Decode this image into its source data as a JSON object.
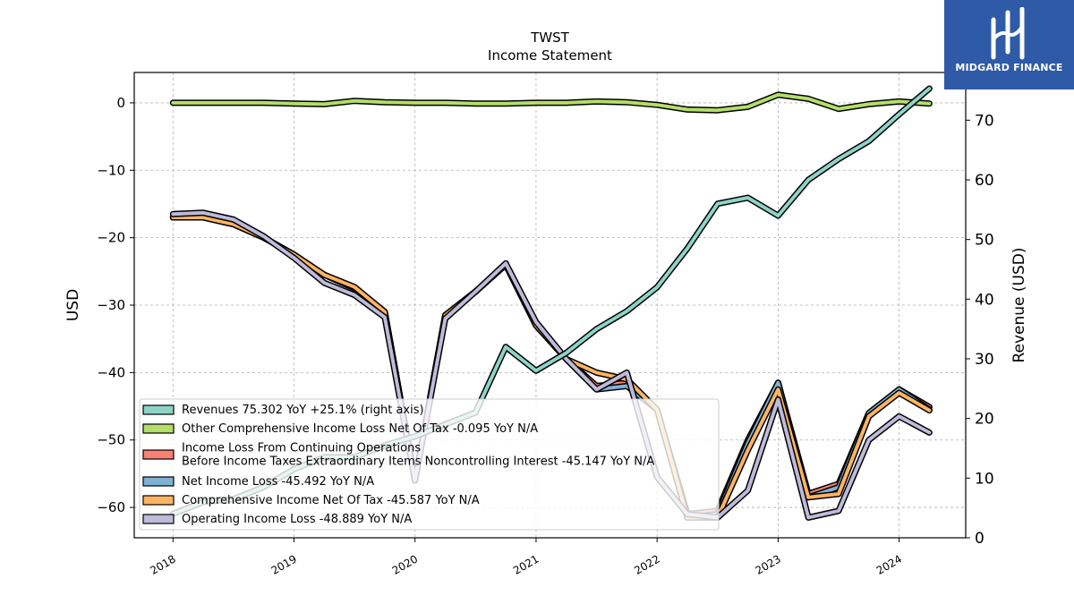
{
  "chart_data": {
    "type": "line",
    "title": "TWST",
    "subtitle": "Income Statement",
    "ylabel": "USD",
    "ylabel_right": "Revenue (USD)",
    "ylim": [
      -64.5,
      4.5
    ],
    "ylim_right": [
      0,
      78
    ],
    "yticks": [
      0,
      -10,
      -20,
      -30,
      -40,
      -50,
      -60
    ],
    "yticks_right": [
      0,
      10,
      20,
      30,
      40,
      50,
      60,
      70
    ],
    "xlim": [
      2017.68,
      2024.55
    ],
    "xticks": [
      2018,
      2019,
      2020,
      2021,
      2022,
      2023,
      2024
    ],
    "x": [
      2018.0,
      2018.25,
      2018.5,
      2018.75,
      2019.0,
      2019.25,
      2019.5,
      2019.75,
      2020.0,
      2020.25,
      2020.5,
      2020.75,
      2021.0,
      2021.25,
      2021.5,
      2021.75,
      2022.0,
      2022.25,
      2022.5,
      2022.75,
      2023.0,
      2023.25,
      2023.5,
      2023.75,
      2024.0,
      2024.25
    ],
    "grid": true,
    "legend_position": "lower-left",
    "series": [
      {
        "name": "Revenues",
        "legend": "Revenues  75.302 YoY +25.1% (right axis)",
        "color": "#8dd3c7",
        "axis": "right",
        "values": [
          4.0,
          6.0,
          6.5,
          8.5,
          11.5,
          13.5,
          13.5,
          15.5,
          17.0,
          19.0,
          21.0,
          32.0,
          28.0,
          31.0,
          35.0,
          38.0,
          42.0,
          48.5,
          56.0,
          57.0,
          54.0,
          60.0,
          63.5,
          66.5,
          71.0,
          75.3
        ]
      },
      {
        "name": "Other Comprehensive Income Loss Net Of Tax",
        "legend": "Other Comprehensive Income Loss Net Of Tax  -0.095 YoY N/A",
        "color": "#b3de69",
        "axis": "left",
        "values": [
          0.0,
          0.0,
          0.0,
          0.0,
          -0.1,
          -0.2,
          0.3,
          0.1,
          0.0,
          0.0,
          -0.1,
          -0.1,
          0.0,
          0.0,
          0.2,
          0.1,
          -0.3,
          -1.0,
          -1.1,
          -0.6,
          1.2,
          0.6,
          -0.9,
          -0.2,
          0.2,
          -0.1
        ]
      },
      {
        "name": "Income Loss From Continuing Operations Before Income Taxes Extraordinary Items Noncontrolling Interest",
        "legend": "Income Loss From Continuing Operations\nBefore Income Taxes Extraordinary Items Noncontrolling Interest  -45.147 YoY N/A",
        "color": "#fb8072",
        "axis": "left",
        "values": [
          -17.0,
          -17.0,
          -18.0,
          -20.0,
          -22.5,
          -25.5,
          -27.5,
          -31.0,
          -56.0,
          -31.5,
          -28.0,
          -24.0,
          -33.0,
          -38.0,
          -42.0,
          -41.5,
          -45.5,
          -61.0,
          -60.5,
          -50.0,
          -41.5,
          -58.0,
          -56.5,
          -46.0,
          -42.5,
          -45.1
        ]
      },
      {
        "name": "Net Income Loss",
        "legend": "Net Income Loss  -45.492 YoY N/A",
        "color": "#80b1d3",
        "axis": "left",
        "values": [
          -17.0,
          -17.0,
          -18.0,
          -20.0,
          -22.5,
          -25.5,
          -27.5,
          -31.0,
          -56.0,
          -31.5,
          -28.0,
          -24.0,
          -33.0,
          -38.0,
          -42.5,
          -42.0,
          -45.5,
          -61.5,
          -61.0,
          -50.5,
          -41.5,
          -58.5,
          -57.0,
          -46.0,
          -42.5,
          -45.5
        ]
      },
      {
        "name": "Comprehensive Income Net Of Tax",
        "legend": "Comprehensive Income Net Of Tax  -45.587 YoY N/A",
        "color": "#fdb462",
        "axis": "left",
        "values": [
          -17.0,
          -17.0,
          -18.0,
          -20.0,
          -22.5,
          -25.5,
          -27.3,
          -31.0,
          -56.0,
          -31.5,
          -28.0,
          -24.0,
          -33.0,
          -38.0,
          -40.0,
          -41.0,
          -45.5,
          -61.5,
          -61.5,
          -51.5,
          -42.5,
          -58.5,
          -58.0,
          -46.5,
          -43.0,
          -45.6
        ]
      },
      {
        "name": "Operating Income Loss",
        "legend": "Operating Income Loss  -48.889 YoY N/A",
        "color": "#bebada",
        "axis": "left",
        "values": [
          -16.5,
          -16.3,
          -17.3,
          -19.8,
          -23.0,
          -26.7,
          -28.5,
          -31.8,
          -56.0,
          -32.0,
          -28.0,
          -23.8,
          -32.5,
          -38.0,
          -42.5,
          -40.0,
          -55.5,
          -61.0,
          -61.5,
          -57.5,
          -44.0,
          -61.5,
          -60.5,
          -50.0,
          -46.5,
          -48.9
        ]
      }
    ]
  },
  "logo": {
    "text": "MIDGARD FINANCE"
  }
}
